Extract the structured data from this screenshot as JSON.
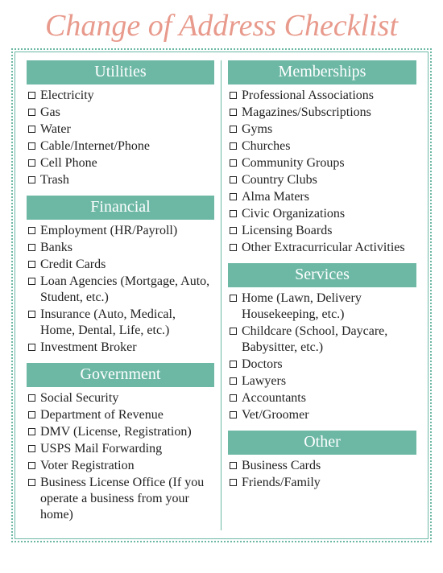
{
  "title": "Change of Address Checklist",
  "colors": {
    "title": "#e89a8c",
    "accent": "#6db8a5",
    "border": "#6db8a5",
    "divider": "#6db8a5",
    "text": "#222222",
    "headerText": "#ffffff",
    "background": "#ffffff"
  },
  "typography": {
    "titleFontSize": 38,
    "titleStyle": "italic",
    "headerFontSize": 20,
    "itemFontSize": 16,
    "fontFamily": "Georgia, serif"
  },
  "layout": {
    "columns": 2
  },
  "left": [
    {
      "header": "Utilities",
      "items": [
        "Electricity",
        "Gas",
        "Water",
        "Cable/Internet/Phone",
        "Cell Phone",
        "Trash"
      ]
    },
    {
      "header": "Financial",
      "items": [
        "Employment (HR/Payroll)",
        "Banks",
        "Credit Cards",
        "Loan Agencies (Mortgage, Auto, Student, etc.)",
        "Insurance (Auto, Medical, Home, Dental, Life, etc.)",
        "Investment Broker"
      ]
    },
    {
      "header": "Government",
      "items": [
        "Social Security",
        "Department of Revenue",
        "DMV (License, Registration)",
        "USPS Mail Forwarding",
        "Voter Registration",
        "Business License Office (If you operate a business from your home)"
      ]
    }
  ],
  "right": [
    {
      "header": "Memberships",
      "items": [
        "Professional Associations",
        "Magazines/Subscriptions",
        "Gyms",
        "Churches",
        "Community Groups",
        "Country Clubs",
        "Alma Maters",
        "Civic Organizations",
        "Licensing Boards",
        "Other Extracurricular Activities"
      ]
    },
    {
      "header": "Services",
      "items": [
        "Home (Lawn, Delivery Housekeeping, etc.)",
        "Childcare (School, Daycare, Babysitter, etc.)",
        "Doctors",
        "Lawyers",
        "Accountants",
        "Vet/Groomer"
      ]
    },
    {
      "header": "Other",
      "items": [
        "Business Cards",
        "Friends/Family"
      ]
    }
  ]
}
